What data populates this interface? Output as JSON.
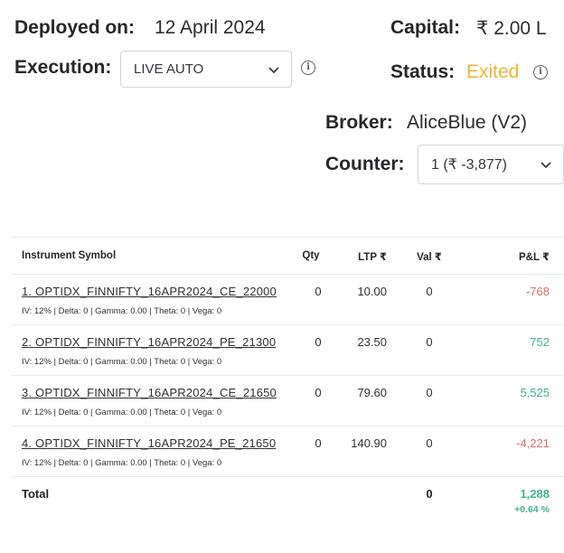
{
  "header": {
    "deployed_label": "Deployed on:",
    "deployed_value": "12 April 2024",
    "capital_label": "Capital:",
    "capital_value": "₹ 2.00 L",
    "execution_label": "Execution:",
    "execution_selected": "LIVE AUTO",
    "status_label": "Status:",
    "status_value": "Exited",
    "status_color": "#f2b533",
    "broker_label": "Broker:",
    "broker_value": "AliceBlue (V2)",
    "counter_label": "Counter:",
    "counter_selected": "1 (₹ -3,877)"
  },
  "icons": {
    "info": "info-icon",
    "dropdown": "chevron-down-icon"
  },
  "table": {
    "columns": {
      "symbol": "Instrument Symbol",
      "qty": "Qty",
      "ltp": "LTP ₹",
      "val": "Val ₹",
      "pnl": "P&L ₹"
    },
    "rows": [
      {
        "symbol": "1. OPTIDX_FINNIFTY_16APR2024_CE_22000",
        "greeks": "IV: 12% | Delta: 0 | Gamma: 0.00 | Theta: 0 | Vega: 0",
        "qty": "0",
        "ltp": "10.00",
        "val": "0",
        "pnl": "-768",
        "pnl_sign": "neg"
      },
      {
        "symbol": "2. OPTIDX_FINNIFTY_16APR2024_PE_21300",
        "greeks": "IV: 12% | Delta: 0 | Gamma: 0.00 | Theta: 0 | Vega: 0",
        "qty": "0",
        "ltp": "23.50",
        "val": "0",
        "pnl": "752",
        "pnl_sign": "pos"
      },
      {
        "symbol": "3. OPTIDX_FINNIFTY_16APR2024_CE_21650",
        "greeks": "IV: 12% | Delta: 0 | Gamma: 0.00 | Theta: 0 | Vega: 0",
        "qty": "0",
        "ltp": "79.60",
        "val": "0",
        "pnl": "5,525",
        "pnl_sign": "pos"
      },
      {
        "symbol": "4. OPTIDX_FINNIFTY_16APR2024_PE_21650",
        "greeks": "IV: 12% | Delta: 0 | Gamma: 0.00 | Theta: 0 | Vega: 0",
        "qty": "0",
        "ltp": "140.90",
        "val": "0",
        "pnl": "-4,221",
        "pnl_sign": "neg"
      }
    ],
    "total": {
      "label": "Total",
      "val": "0",
      "pnl": "1,288",
      "pnl_pct": "+0.64 %"
    },
    "colors": {
      "negative": "#e06a6a",
      "positive": "#3fb389"
    }
  }
}
